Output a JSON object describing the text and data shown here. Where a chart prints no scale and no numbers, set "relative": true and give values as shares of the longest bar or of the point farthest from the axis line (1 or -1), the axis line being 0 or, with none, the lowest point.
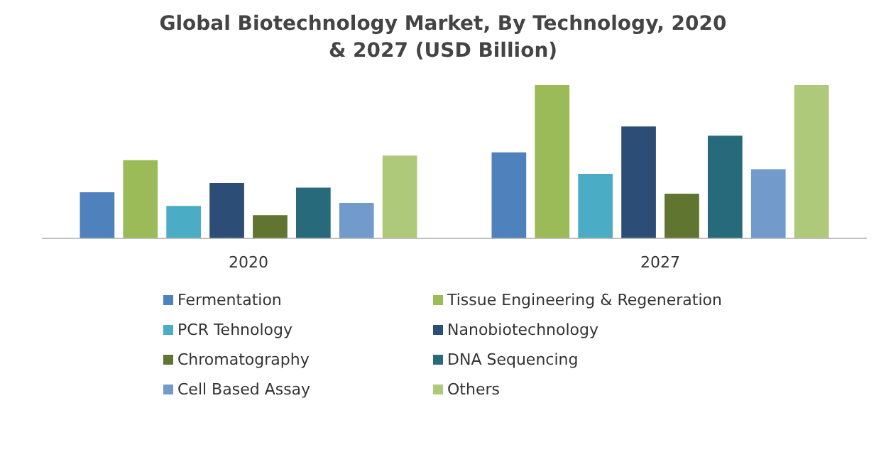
{
  "chart_data": {
    "type": "bar",
    "title": "Global Biotechnology Market, By Technology, 2020 & 2027 (USD Billion)",
    "relative": true,
    "legend": "bottom",
    "categories": [
      "2020",
      "2027"
    ],
    "series": [
      {
        "name": "Fermentation",
        "color": "#4f81bd",
        "values": [
          0.3,
          0.56
        ]
      },
      {
        "name": "Tissue Engineering & Regeneration",
        "color": "#9bbb59",
        "values": [
          0.51,
          1
        ]
      },
      {
        "name": "PCR Tehnology",
        "color": "#4bacc6",
        "values": [
          0.21,
          0.42
        ]
      },
      {
        "name": "Nanobiotechnology",
        "color": "#2c4d75",
        "values": [
          0.36,
          0.73
        ]
      },
      {
        "name": "Chromatography",
        "color": "#5f7530",
        "values": [
          0.15,
          0.29
        ]
      },
      {
        "name": "DNA Sequencing",
        "color": "#276a7c",
        "values": [
          0.33,
          0.67
        ]
      },
      {
        "name": "Cell Based Assay",
        "color": "#729aca",
        "values": [
          0.23,
          0.45
        ]
      },
      {
        "name": "Others",
        "color": "#afc97a",
        "values": [
          0.54,
          1
        ]
      }
    ]
  }
}
